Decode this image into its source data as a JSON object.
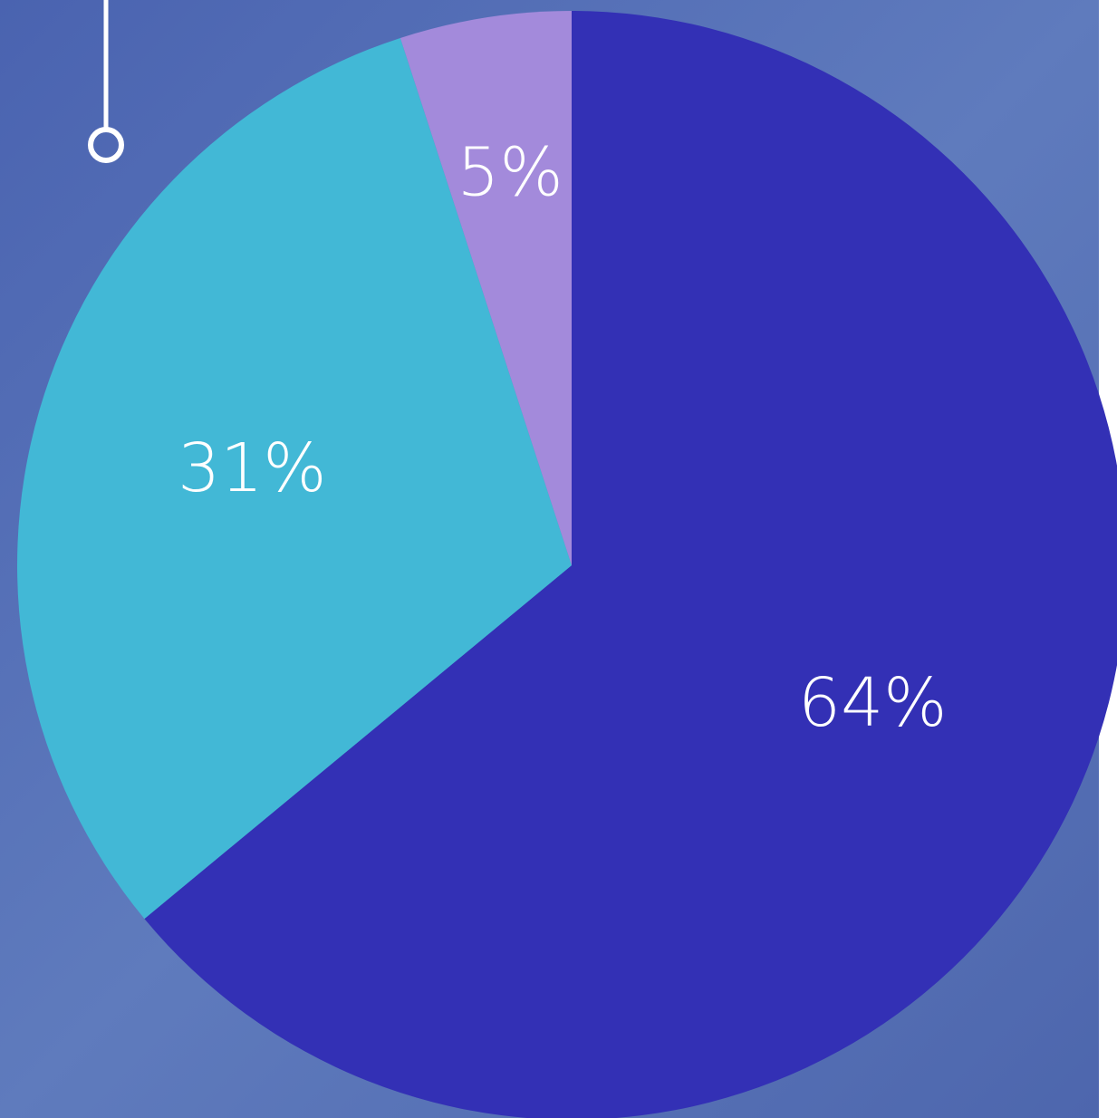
{
  "chart_data": {
    "type": "pie",
    "categories": [
      null,
      null,
      null
    ],
    "values": [
      64,
      31,
      5
    ],
    "value_labels": [
      "64%",
      "31%",
      "5%"
    ],
    "colors": [
      "#3330b5",
      "#42b8d6",
      "#a38adb"
    ]
  }
}
